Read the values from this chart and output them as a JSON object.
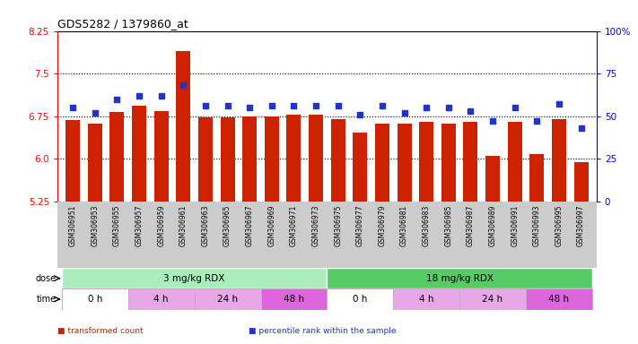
{
  "title": "GDS5282 / 1379860_at",
  "samples": [
    "GSM306951",
    "GSM306953",
    "GSM306955",
    "GSM306957",
    "GSM306959",
    "GSM306961",
    "GSM306963",
    "GSM306965",
    "GSM306967",
    "GSM306969",
    "GSM306971",
    "GSM306973",
    "GSM306975",
    "GSM306977",
    "GSM306979",
    "GSM306981",
    "GSM306983",
    "GSM306985",
    "GSM306987",
    "GSM306989",
    "GSM306991",
    "GSM306993",
    "GSM306995",
    "GSM306997"
  ],
  "transformed_count": [
    6.68,
    6.62,
    6.82,
    6.93,
    6.84,
    7.9,
    6.73,
    6.73,
    6.75,
    6.75,
    6.78,
    6.78,
    6.7,
    6.46,
    6.62,
    6.62,
    6.65,
    6.62,
    6.65,
    6.05,
    6.65,
    6.08,
    6.7,
    5.95
  ],
  "percentile_rank": [
    55,
    52,
    60,
    62,
    62,
    68,
    56,
    56,
    55,
    56,
    56,
    56,
    56,
    51,
    56,
    52,
    55,
    55,
    53,
    47,
    55,
    47,
    57,
    43
  ],
  "ylim_left": [
    5.25,
    8.25
  ],
  "ylim_right": [
    0,
    100
  ],
  "yticks_left": [
    5.25,
    6.0,
    6.75,
    7.5,
    8.25
  ],
  "yticks_right": [
    0,
    25,
    50,
    75,
    100
  ],
  "bar_color": "#cc2200",
  "dot_color": "#2233cc",
  "dose_groups": [
    {
      "label": "3 mg/kg RDX",
      "start": 0,
      "end": 12,
      "color": "#aaeebb"
    },
    {
      "label": "18 mg/kg RDX",
      "start": 12,
      "end": 24,
      "color": "#55cc66"
    }
  ],
  "time_groups": [
    {
      "label": "0 h",
      "start": 0,
      "end": 3,
      "color": "#ffffff"
    },
    {
      "label": "4 h",
      "start": 3,
      "end": 6,
      "color": "#e8a8e8"
    },
    {
      "label": "24 h",
      "start": 6,
      "end": 9,
      "color": "#e8a8e8"
    },
    {
      "label": "48 h",
      "start": 9,
      "end": 12,
      "color": "#dd66dd"
    },
    {
      "label": "0 h",
      "start": 12,
      "end": 15,
      "color": "#ffffff"
    },
    {
      "label": "4 h",
      "start": 15,
      "end": 18,
      "color": "#e8a8e8"
    },
    {
      "label": "24 h",
      "start": 18,
      "end": 21,
      "color": "#e8a8e8"
    },
    {
      "label": "48 h",
      "start": 21,
      "end": 24,
      "color": "#dd66dd"
    }
  ],
  "background_color": "#ffffff",
  "plot_bg_color": "#ffffff",
  "tick_area_color": "#cccccc",
  "legend_items": [
    {
      "color": "#cc2200",
      "label": "transformed count"
    },
    {
      "color": "#2233cc",
      "label": "percentile rank within the sample"
    }
  ]
}
